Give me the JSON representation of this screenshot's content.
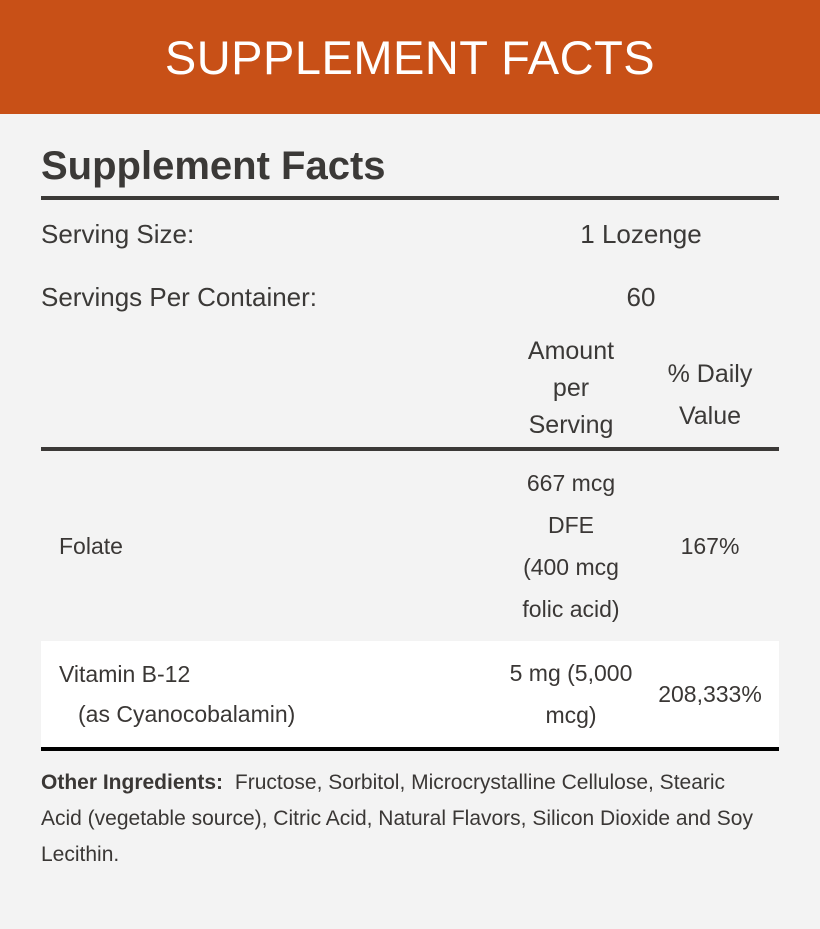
{
  "banner": {
    "title": "SUPPLEMENT FACTS",
    "color": "#c85017"
  },
  "facts": {
    "title": "Supplement Facts",
    "serving_size": {
      "label": "Serving Size:",
      "value": "1 Lozenge"
    },
    "servings_per_container": {
      "label": "Servings Per Container:",
      "value": "60"
    },
    "columns": {
      "amount": [
        "Amount",
        "per",
        "Serving"
      ],
      "daily_value": [
        "% Daily",
        "Value"
      ]
    },
    "nutrients": [
      {
        "name": "Folate",
        "sub": "",
        "amount_lines": [
          "667 mcg",
          "DFE",
          "(400 mcg",
          "folic acid)"
        ],
        "daily_value": "167%"
      },
      {
        "name": "Vitamin B-12",
        "sub": "(as Cyanocobalamin)",
        "amount_lines": [
          "5 mg (5,000",
          "mcg)"
        ],
        "daily_value": "208,333%"
      }
    ],
    "other_ingredients": {
      "label": "Other Ingredients:",
      "text": "Fructose, Sorbitol, Microcrystalline Cellulose, Stearic Acid (vegetable source), Citric Acid, Natural Flavors, Silicon Dioxide and Soy Lecithin."
    }
  }
}
